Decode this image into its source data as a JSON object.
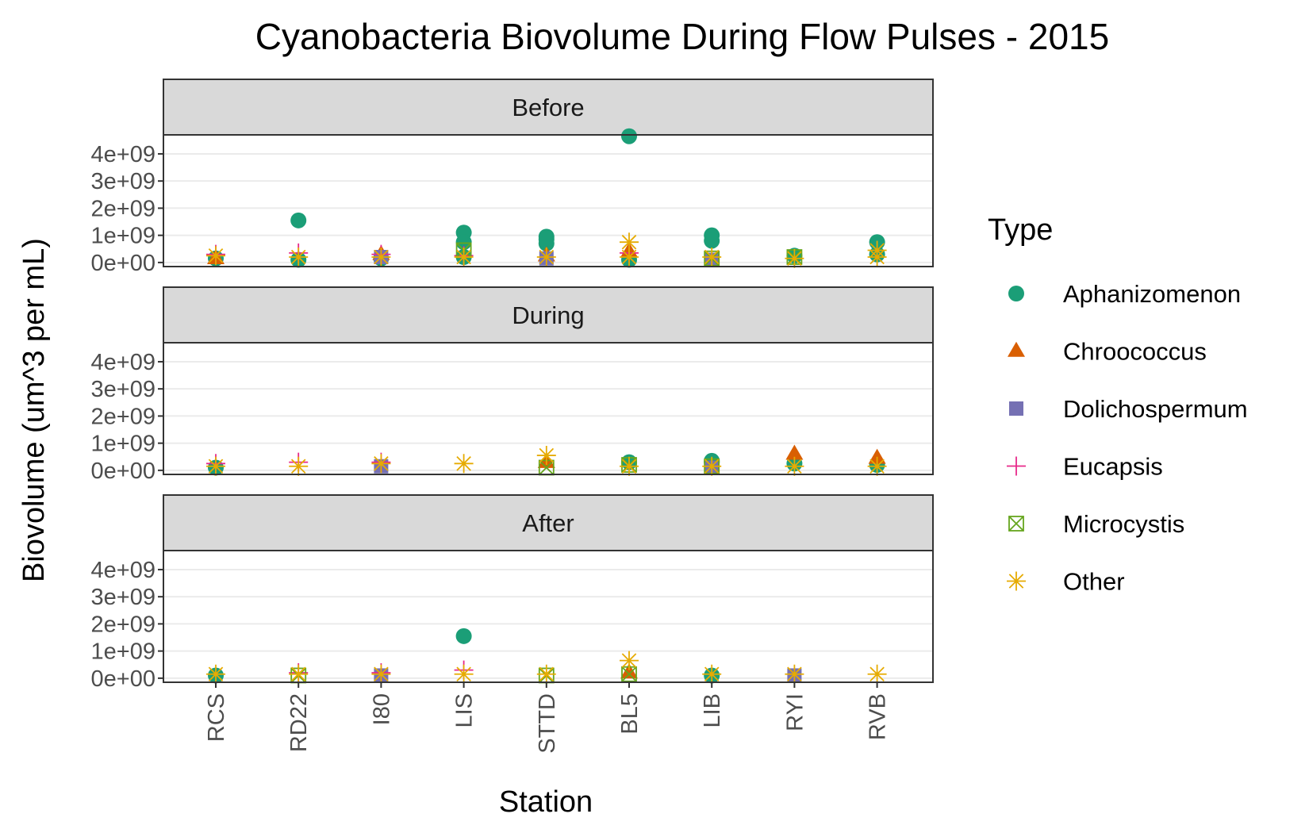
{
  "chart_data": {
    "type": "scatter",
    "title": "Cyanobacteria Biovolume During Flow Pulses - 2015",
    "xlabel": "Station",
    "ylabel": "Biovolume (um^3 per mL)",
    "ylim": [
      -150000000,
      4700000000
    ],
    "yticks": [
      0,
      1000000000,
      2000000000,
      3000000000,
      4000000000
    ],
    "ytick_labels": [
      "0e+00",
      "1e+09",
      "2e+09",
      "3e+09",
      "4e+09"
    ],
    "grid": "horizontal major",
    "categories": [
      "RCS",
      "RD22",
      "I80",
      "LIS",
      "STTD",
      "BL5",
      "LIB",
      "RYI",
      "RVB"
    ],
    "facets": [
      "Before",
      "During",
      "After"
    ],
    "legend": {
      "title": "Type",
      "position": "right",
      "entries": [
        {
          "name": "Aphanizomenon",
          "color": "#1b9e77",
          "shape": "circle"
        },
        {
          "name": "Chroococcus",
          "color": "#d95f02",
          "shape": "triangle"
        },
        {
          "name": "Dolichospermum",
          "color": "#7570b3",
          "shape": "square"
        },
        {
          "name": "Eucapsis",
          "color": "#e7298a",
          "shape": "plus"
        },
        {
          "name": "Microcystis",
          "color": "#66a61e",
          "shape": "boxed-x"
        },
        {
          "name": "Other",
          "color": "#e6ab02",
          "shape": "asterisk"
        }
      ]
    },
    "series": [
      {
        "name": "Aphanizomenon",
        "points": [
          {
            "facet": "Before",
            "x": "RCS",
            "y": 150000000
          },
          {
            "facet": "Before",
            "x": "RD22",
            "y": 1550000000
          },
          {
            "facet": "Before",
            "x": "RD22",
            "y": 100000000
          },
          {
            "facet": "Before",
            "x": "I80",
            "y": 150000000
          },
          {
            "facet": "Before",
            "x": "LIS",
            "y": 1100000000
          },
          {
            "facet": "Before",
            "x": "LIS",
            "y": 750000000
          },
          {
            "facet": "Before",
            "x": "LIS",
            "y": 200000000
          },
          {
            "facet": "Before",
            "x": "STTD",
            "y": 950000000
          },
          {
            "facet": "Before",
            "x": "STTD",
            "y": 850000000
          },
          {
            "facet": "Before",
            "x": "STTD",
            "y": 700000000
          },
          {
            "facet": "Before",
            "x": "BL5",
            "y": 4650000000
          },
          {
            "facet": "Before",
            "x": "BL5",
            "y": 100000000
          },
          {
            "facet": "Before",
            "x": "LIB",
            "y": 1000000000
          },
          {
            "facet": "Before",
            "x": "LIB",
            "y": 800000000
          },
          {
            "facet": "Before",
            "x": "RYI",
            "y": 250000000
          },
          {
            "facet": "Before",
            "x": "RVB",
            "y": 750000000
          },
          {
            "facet": "Before",
            "x": "RVB",
            "y": 300000000
          },
          {
            "facet": "During",
            "x": "RCS",
            "y": 100000000
          },
          {
            "facet": "During",
            "x": "BL5",
            "y": 300000000
          },
          {
            "facet": "During",
            "x": "LIB",
            "y": 350000000
          },
          {
            "facet": "During",
            "x": "LIB",
            "y": 300000000
          },
          {
            "facet": "During",
            "x": "RYI",
            "y": 250000000
          },
          {
            "facet": "During",
            "x": "RVB",
            "y": 200000000
          },
          {
            "facet": "After",
            "x": "LIS",
            "y": 1550000000
          },
          {
            "facet": "After",
            "x": "RCS",
            "y": 100000000
          },
          {
            "facet": "After",
            "x": "LIB",
            "y": 100000000
          }
        ]
      },
      {
        "name": "Chroococcus",
        "points": [
          {
            "facet": "Before",
            "x": "RCS",
            "y": 150000000
          },
          {
            "facet": "Before",
            "x": "I80",
            "y": 300000000
          },
          {
            "facet": "Before",
            "x": "STTD",
            "y": 250000000
          },
          {
            "facet": "Before",
            "x": "BL5",
            "y": 400000000
          },
          {
            "facet": "During",
            "x": "RYI",
            "y": 600000000
          },
          {
            "facet": "During",
            "x": "RVB",
            "y": 450000000
          },
          {
            "facet": "During",
            "x": "STTD",
            "y": 300000000
          },
          {
            "facet": "After",
            "x": "BL5",
            "y": 200000000
          }
        ]
      },
      {
        "name": "Dolichospermum",
        "points": [
          {
            "facet": "Before",
            "x": "I80",
            "y": 200000000
          },
          {
            "facet": "Before",
            "x": "STTD",
            "y": 150000000
          },
          {
            "facet": "Before",
            "x": "LIB",
            "y": 100000000
          },
          {
            "facet": "During",
            "x": "I80",
            "y": 150000000
          },
          {
            "facet": "During",
            "x": "LIB",
            "y": 100000000
          },
          {
            "facet": "After",
            "x": "I80",
            "y": 100000000
          },
          {
            "facet": "After",
            "x": "RYI",
            "y": 100000000
          }
        ]
      },
      {
        "name": "Eucapsis",
        "points": [
          {
            "facet": "Before",
            "x": "RCS",
            "y": 300000000
          },
          {
            "facet": "Before",
            "x": "RD22",
            "y": 350000000
          },
          {
            "facet": "Before",
            "x": "I80",
            "y": 300000000
          },
          {
            "facet": "Before",
            "x": "LIS",
            "y": 250000000
          },
          {
            "facet": "Before",
            "x": "BL5",
            "y": 350000000
          },
          {
            "facet": "During",
            "x": "RCS",
            "y": 250000000
          },
          {
            "facet": "During",
            "x": "RD22",
            "y": 300000000
          },
          {
            "facet": "During",
            "x": "I80",
            "y": 300000000
          },
          {
            "facet": "After",
            "x": "LIS",
            "y": 300000000
          },
          {
            "facet": "After",
            "x": "RD22",
            "y": 200000000
          },
          {
            "facet": "After",
            "x": "I80",
            "y": 200000000
          }
        ]
      },
      {
        "name": "Microcystis",
        "points": [
          {
            "facet": "Before",
            "x": "LIS",
            "y": 450000000
          },
          {
            "facet": "Before",
            "x": "LIB",
            "y": 150000000
          },
          {
            "facet": "Before",
            "x": "RYI",
            "y": 200000000
          },
          {
            "facet": "During",
            "x": "BL5",
            "y": 200000000
          },
          {
            "facet": "During",
            "x": "LIB",
            "y": 150000000
          },
          {
            "facet": "During",
            "x": "STTD",
            "y": 100000000
          },
          {
            "facet": "After",
            "x": "BL5",
            "y": 150000000
          },
          {
            "facet": "After",
            "x": "RD22",
            "y": 100000000
          },
          {
            "facet": "After",
            "x": "STTD",
            "y": 100000000
          }
        ]
      },
      {
        "name": "Other",
        "points": [
          {
            "facet": "Before",
            "x": "RCS",
            "y": 250000000
          },
          {
            "facet": "Before",
            "x": "RD22",
            "y": 200000000
          },
          {
            "facet": "Before",
            "x": "I80",
            "y": 200000000
          },
          {
            "facet": "Before",
            "x": "LIS",
            "y": 200000000
          },
          {
            "facet": "Before",
            "x": "STTD",
            "y": 200000000
          },
          {
            "facet": "Before",
            "x": "BL5",
            "y": 750000000
          },
          {
            "facet": "Before",
            "x": "BL5",
            "y": 200000000
          },
          {
            "facet": "Before",
            "x": "LIB",
            "y": 200000000
          },
          {
            "facet": "Before",
            "x": "RYI",
            "y": 150000000
          },
          {
            "facet": "Before",
            "x": "RVB",
            "y": 450000000
          },
          {
            "facet": "Before",
            "x": "RVB",
            "y": 200000000
          },
          {
            "facet": "During",
            "x": "RCS",
            "y": 150000000
          },
          {
            "facet": "During",
            "x": "RD22",
            "y": 150000000
          },
          {
            "facet": "During",
            "x": "I80",
            "y": 250000000
          },
          {
            "facet": "During",
            "x": "LIS",
            "y": 250000000
          },
          {
            "facet": "During",
            "x": "STTD",
            "y": 550000000
          },
          {
            "facet": "During",
            "x": "BL5",
            "y": 150000000
          },
          {
            "facet": "During",
            "x": "LIB",
            "y": 150000000
          },
          {
            "facet": "During",
            "x": "RYI",
            "y": 150000000
          },
          {
            "facet": "During",
            "x": "RVB",
            "y": 150000000
          },
          {
            "facet": "After",
            "x": "RCS",
            "y": 150000000
          },
          {
            "facet": "After",
            "x": "RD22",
            "y": 150000000
          },
          {
            "facet": "After",
            "x": "I80",
            "y": 150000000
          },
          {
            "facet": "After",
            "x": "LIS",
            "y": 150000000
          },
          {
            "facet": "After",
            "x": "STTD",
            "y": 150000000
          },
          {
            "facet": "After",
            "x": "BL5",
            "y": 650000000
          },
          {
            "facet": "After",
            "x": "LIB",
            "y": 150000000
          },
          {
            "facet": "After",
            "x": "RYI",
            "y": 150000000
          },
          {
            "facet": "After",
            "x": "RVB",
            "y": 150000000
          }
        ]
      }
    ]
  }
}
